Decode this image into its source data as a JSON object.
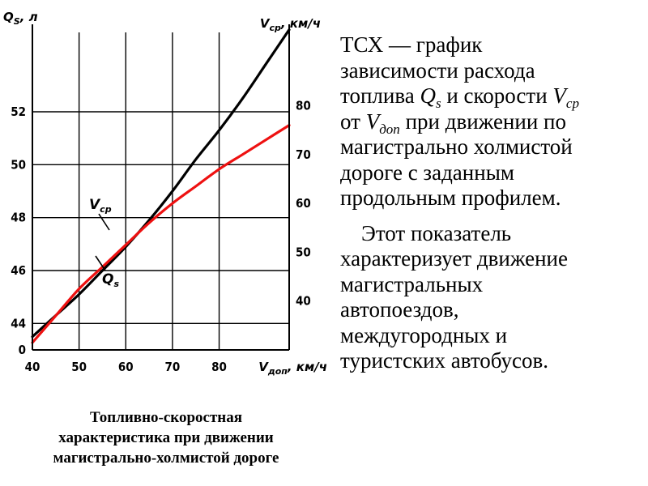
{
  "chart_data": {
    "type": "line",
    "x_axis": {
      "label_symbol": "V",
      "label_sub": "доп",
      "label_unit": ", км/ч",
      "range": [
        40,
        95
      ],
      "ticks": [
        40,
        50,
        60,
        70,
        80
      ]
    },
    "y_left": {
      "label_symbol": "Q",
      "label_sub": "S",
      "label_unit": ", л",
      "range": [
        43,
        55
      ],
      "ticks": [
        44,
        46,
        48,
        50,
        52
      ],
      "zero_label": "0"
    },
    "y_right": {
      "label_symbol": "V",
      "label_sub": "ср",
      "label_unit": ", км/ч",
      "range": [
        30,
        95
      ],
      "ticks": [
        40,
        50,
        60,
        70,
        80
      ]
    },
    "grid": true,
    "series": [
      {
        "name": "Qs",
        "label_text": "Q",
        "label_sub": "s",
        "axis": "left",
        "color": "#000000",
        "x": [
          40,
          45,
          50,
          55,
          60,
          65,
          70,
          75,
          80,
          85,
          90,
          95
        ],
        "y": [
          43.5,
          44.3,
          45.1,
          46.0,
          46.9,
          47.9,
          49.0,
          50.2,
          51.3,
          52.5,
          53.8,
          55.1
        ]
      },
      {
        "name": "Vcp",
        "label_text": "V",
        "label_sub": "ср",
        "axis": "right",
        "color": "#ee1111",
        "x": [
          40,
          45,
          50,
          55,
          60,
          65,
          70,
          75,
          80,
          85,
          90,
          95
        ],
        "y": [
          31.5,
          37,
          42.5,
          47,
          51.5,
          56,
          60,
          63.5,
          67,
          70,
          73,
          76
        ]
      }
    ]
  },
  "caption": {
    "lines": [
      "Топливно-скоростная",
      "характеристика при движении",
      "магистрально-холмистой дороге"
    ]
  },
  "description": {
    "line1": "ТСХ — график",
    "line2": "зависимости расхода",
    "line3_a": "топлива ",
    "line3_q": "Q",
    "line3_qsub": "s",
    "line3_b": " и скорости ",
    "line3_v": "V",
    "line3_vsub": "ср",
    "line4_a": "от ",
    "line4_v": "V",
    "line4_vsub": "доп",
    "line4_b": " при движении по",
    "line5": "магистрально холмистой",
    "line6": "дороге с заданным",
    "line7": "продольным профилем.",
    "para2": [
      "Этот показатель",
      "характеризует движение",
      "магистральных",
      "автопоездов,",
      "междугородных и",
      "туристских автобусов."
    ]
  }
}
